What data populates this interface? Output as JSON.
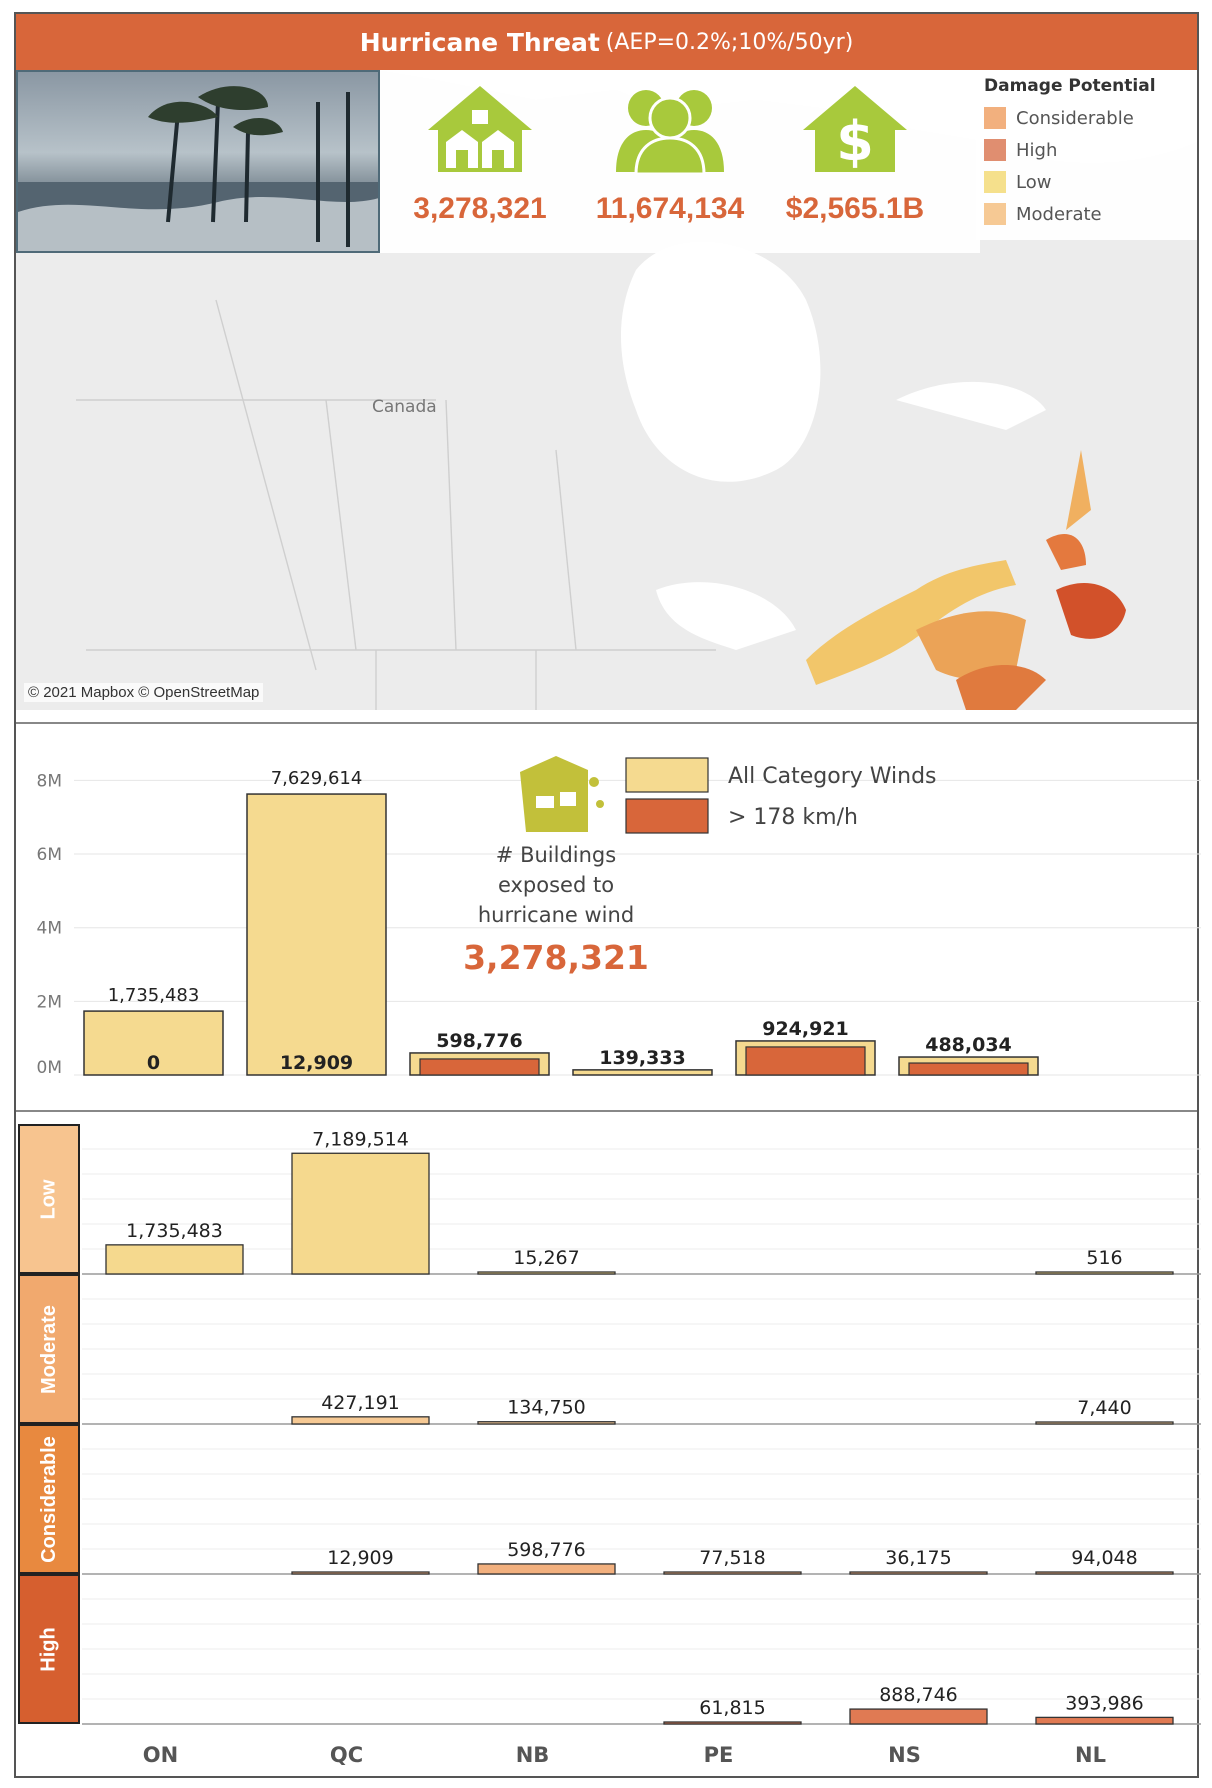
{
  "header": {
    "title": "Hurricane Threat",
    "subtitle": "(AEP=0.2%;10%/50yr)"
  },
  "kpis": [
    {
      "icon": "houses-icon",
      "value": "3,278,321"
    },
    {
      "icon": "people-icon",
      "value": "11,674,134"
    },
    {
      "icon": "house-dollar-icon",
      "value": "$2,565.1B"
    }
  ],
  "legend": {
    "title": "Damage Potential",
    "items": [
      {
        "label": "Considerable",
        "color": "#F2B07E"
      },
      {
        "label": "High",
        "color": "#E08E70"
      },
      {
        "label": "Low",
        "color": "#F5E08C"
      },
      {
        "label": "Moderate",
        "color": "#F6C994"
      }
    ]
  },
  "map": {
    "country_label": "Canada",
    "attribution": "© 2021 Mapbox © OpenStreetMap"
  },
  "colors": {
    "title_bar": "#D8663A",
    "all_winds": "#F5DA90",
    "high_winds": "#D8663A",
    "kpi_icon": "#A8C93C"
  },
  "chart_data": [
    {
      "type": "bar",
      "categories": [
        "ON",
        "QC",
        "NB",
        "PE",
        "NS",
        "NL"
      ],
      "series": [
        {
          "name": "All Category Winds",
          "values": [
            1735483,
            7629614,
            598776,
            139333,
            924921,
            488034
          ]
        },
        {
          "name": "> 178 km/h",
          "values": [
            0,
            12909,
            598776,
            139333,
            924921,
            488034
          ]
        }
      ],
      "value_labels": [
        "1,735,483",
        "7,629,614",
        "598,776",
        "139,333",
        "924,921",
        "488,034"
      ],
      "inner_labels": [
        "0",
        "12,909",
        "",
        "",
        "",
        ""
      ],
      "yticks": [
        "0M",
        "2M",
        "4M",
        "6M",
        "8M"
      ],
      "ylim": [
        0,
        8500000
      ],
      "annotation": {
        "line1": "# Buildings",
        "line2": "exposed to",
        "line3": "hurricane wind",
        "total": "3,278,321"
      },
      "legend_position": "top-center"
    },
    {
      "type": "bar",
      "categories": [
        "ON",
        "QC",
        "NB",
        "PE",
        "NS",
        "NL"
      ],
      "rows": [
        {
          "name": "Low",
          "color": "#F5D98E",
          "label_color": "#F7C48F",
          "values": [
            1735483,
            7189514,
            15267,
            0,
            0,
            516
          ],
          "labels": [
            "1,735,483",
            "7,189,514",
            "15,267",
            "",
            "",
            "516"
          ]
        },
        {
          "name": "Moderate",
          "color": "#F6C994",
          "label_color": "#F1A96E",
          "values": [
            0,
            427191,
            134750,
            0,
            0,
            7440
          ],
          "labels": [
            "",
            "427,191",
            "134,750",
            "",
            "",
            "7,440"
          ]
        },
        {
          "name": "Considerable",
          "color": "#F2B07E",
          "label_color": "#E8893F",
          "values": [
            0,
            12909,
            598776,
            77518,
            36175,
            94048
          ],
          "labels": [
            "",
            "12,909",
            "598,776",
            "77,518",
            "36,175",
            "94,048"
          ]
        },
        {
          "name": "High",
          "color": "#E07A53",
          "label_color": "#D65F2F",
          "values": [
            0,
            0,
            0,
            61815,
            888746,
            393986
          ],
          "labels": [
            "",
            "",
            "",
            "61,815",
            "888,746",
            "393,986"
          ]
        }
      ]
    }
  ]
}
